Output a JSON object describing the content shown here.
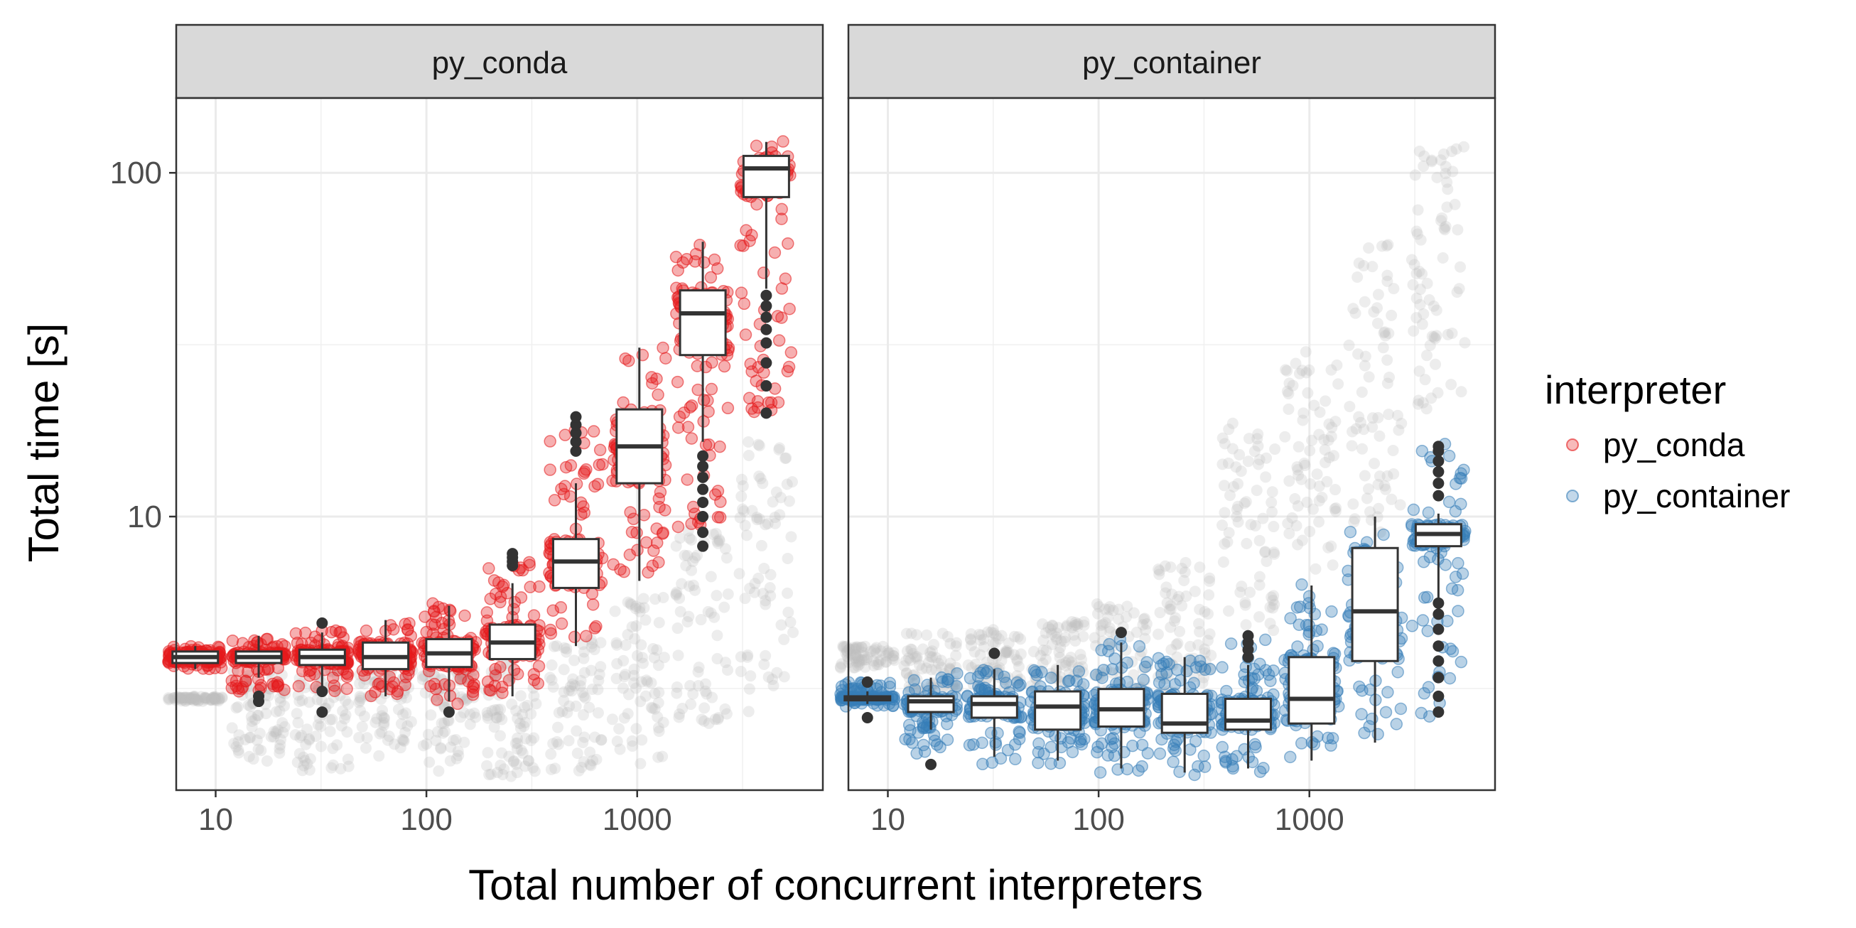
{
  "chart_data": {
    "type": "boxplot-jitter",
    "x_scale": "log10",
    "y_scale": "log10",
    "xlabel": "Total number of concurrent interpreters",
    "ylabel": "Total time [s]",
    "x_ticks": [
      10,
      100,
      1000
    ],
    "x_tick_labels": [
      "10",
      "100",
      "1000"
    ],
    "y_ticks": [
      10,
      100
    ],
    "y_tick_labels": [
      "10",
      "100"
    ],
    "xlim": [
      6.5,
      7600
    ],
    "ylim": [
      1.6,
      165
    ],
    "legend": {
      "title": "interpreter",
      "position": "right",
      "entries": [
        {
          "label": "py_conda",
          "color": "#E41A1C"
        },
        {
          "label": "py_container",
          "color": "#377EB8"
        }
      ]
    },
    "grid": true,
    "background_points_color": "#BEBEBE",
    "panels": [
      {
        "title": "py_conda",
        "series": "py_conda",
        "color": "#E41A1C",
        "background_series": "py_container",
        "boxes": [
          {
            "x": 8,
            "low": 3.6,
            "q1": 3.75,
            "median": 3.9,
            "q3": 4.05,
            "high": 4.2
          },
          {
            "x": 16,
            "low": 3.4,
            "q1": 3.75,
            "median": 3.9,
            "q3": 4.05,
            "high": 4.5
          },
          {
            "x": 32,
            "low": 3.2,
            "q1": 3.7,
            "median": 3.9,
            "q3": 4.1,
            "high": 4.6
          },
          {
            "x": 64,
            "low": 3.0,
            "q1": 3.6,
            "median": 3.9,
            "q3": 4.3,
            "high": 5.0
          },
          {
            "x": 128,
            "low": 2.9,
            "q1": 3.65,
            "median": 4.0,
            "q3": 4.4,
            "high": 5.5
          },
          {
            "x": 256,
            "low": 3.0,
            "q1": 3.85,
            "median": 4.3,
            "q3": 4.85,
            "high": 6.4
          },
          {
            "x": 512,
            "low": 4.2,
            "q1": 6.2,
            "median": 7.4,
            "q3": 8.6,
            "high": 12.5
          },
          {
            "x": 1024,
            "low": 6.5,
            "q1": 12.5,
            "median": 16.0,
            "q3": 20.5,
            "high": 31.0
          },
          {
            "x": 2048,
            "low": 16.5,
            "q1": 29.5,
            "median": 39.0,
            "q3": 45.5,
            "high": 63.0
          },
          {
            "x": 4096,
            "low": 46.0,
            "q1": 85.0,
            "median": 103.0,
            "q3": 112.0,
            "high": 123.0
          }
        ],
        "outliers": [
          {
            "x": 16,
            "values": [
              3.0,
              2.9
            ]
          },
          {
            "x": 32,
            "values": [
              3.1,
              2.7,
              4.9
            ]
          },
          {
            "x": 128,
            "values": [
              2.7
            ]
          },
          {
            "x": 256,
            "values": [
              7.2,
              7.4,
              7.6,
              7.8
            ]
          },
          {
            "x": 512,
            "values": [
              15.5,
              16.5,
              17.5,
              18.5,
              19.5
            ]
          },
          {
            "x": 2048,
            "values": [
              8.2,
              9.0,
              10.0,
              11.0,
              12.0,
              13.0,
              14.0,
              15.0
            ]
          },
          {
            "x": 4096,
            "values": [
              20.0,
              24.0,
              28.0,
              32.0,
              35.0,
              38.0,
              41.0,
              44.0
            ]
          }
        ],
        "point_ranges": [
          {
            "x": 8,
            "lo": 3.6,
            "hi": 4.2
          },
          {
            "x": 16,
            "lo": 3.1,
            "hi": 4.6
          },
          {
            "x": 32,
            "lo": 3.1,
            "hi": 4.7
          },
          {
            "x": 64,
            "lo": 3.0,
            "hi": 5.0
          },
          {
            "x": 128,
            "lo": 2.85,
            "hi": 5.6
          },
          {
            "x": 256,
            "lo": 3.0,
            "hi": 7.4
          },
          {
            "x": 512,
            "lo": 4.4,
            "hi": 19.0
          },
          {
            "x": 1024,
            "lo": 6.8,
            "hi": 31.0
          },
          {
            "x": 2048,
            "lo": 9.0,
            "hi": 63.0
          },
          {
            "x": 4096,
            "lo": 20.0,
            "hi": 128.0
          }
        ],
        "background_ranges": [
          {
            "x": 8,
            "lo": 2.9,
            "hi": 3.0
          },
          {
            "x": 16,
            "lo": 1.9,
            "hi": 3.6
          },
          {
            "x": 32,
            "lo": 1.8,
            "hi": 3.6
          },
          {
            "x": 64,
            "lo": 2.0,
            "hi": 3.8
          },
          {
            "x": 128,
            "lo": 1.8,
            "hi": 3.6
          },
          {
            "x": 256,
            "lo": 1.75,
            "hi": 3.8
          },
          {
            "x": 512,
            "lo": 1.8,
            "hi": 4.4
          },
          {
            "x": 1024,
            "lo": 1.9,
            "hi": 6.0
          },
          {
            "x": 2048,
            "lo": 2.4,
            "hi": 9.5
          },
          {
            "x": 4096,
            "lo": 2.6,
            "hi": 16.5
          }
        ]
      },
      {
        "title": "py_container",
        "series": "py_container",
        "color": "#377EB8",
        "background_series": "py_conda",
        "boxes": [
          {
            "x": 8,
            "low": 2.85,
            "q1": 2.92,
            "median": 2.95,
            "q3": 3.0,
            "high": 3.1
          },
          {
            "x": 16,
            "low": 2.4,
            "q1": 2.7,
            "median": 2.9,
            "q3": 3.0,
            "high": 3.4
          },
          {
            "x": 32,
            "low": 2.0,
            "q1": 2.6,
            "median": 2.85,
            "q3": 3.0,
            "high": 3.6
          },
          {
            "x": 64,
            "low": 1.95,
            "q1": 2.4,
            "median": 2.8,
            "q3": 3.1,
            "high": 3.7
          },
          {
            "x": 128,
            "low": 1.85,
            "q1": 2.45,
            "median": 2.75,
            "q3": 3.15,
            "high": 4.3
          },
          {
            "x": 256,
            "low": 1.8,
            "q1": 2.35,
            "median": 2.5,
            "q3": 3.05,
            "high": 3.9
          },
          {
            "x": 512,
            "low": 1.85,
            "q1": 2.4,
            "median": 2.55,
            "q3": 2.95,
            "high": 3.7
          },
          {
            "x": 1024,
            "low": 1.95,
            "q1": 2.5,
            "median": 2.95,
            "q3": 3.9,
            "high": 6.3
          },
          {
            "x": 2048,
            "low": 2.2,
            "q1": 3.8,
            "median": 5.3,
            "q3": 8.1,
            "high": 10.0
          },
          {
            "x": 4096,
            "low": 5.8,
            "q1": 8.2,
            "median": 8.9,
            "q3": 9.5,
            "high": 10.2
          }
        ],
        "outliers": [
          {
            "x": 8,
            "values": [
              3.3,
              2.6
            ]
          },
          {
            "x": 16,
            "values": [
              1.9
            ]
          },
          {
            "x": 32,
            "values": [
              4.0
            ]
          },
          {
            "x": 128,
            "values": [
              4.6
            ]
          },
          {
            "x": 512,
            "values": [
              3.9,
              4.1,
              4.3,
              4.5
            ]
          },
          {
            "x": 4096,
            "values": [
              2.7,
              3.0,
              3.4,
              3.8,
              4.2,
              4.7,
              5.2,
              5.6,
              11.5,
              12.5,
              13.5,
              14.5,
              15.5,
              16.0
            ]
          }
        ],
        "point_ranges": [
          {
            "x": 8,
            "lo": 2.8,
            "hi": 3.3
          },
          {
            "x": 16,
            "lo": 2.0,
            "hi": 3.5
          },
          {
            "x": 32,
            "lo": 1.9,
            "hi": 3.6
          },
          {
            "x": 64,
            "lo": 1.9,
            "hi": 3.6
          },
          {
            "x": 128,
            "lo": 1.8,
            "hi": 4.4
          },
          {
            "x": 256,
            "lo": 1.75,
            "hi": 3.9
          },
          {
            "x": 512,
            "lo": 1.8,
            "hi": 4.4
          },
          {
            "x": 1024,
            "lo": 1.9,
            "hi": 6.4
          },
          {
            "x": 2048,
            "lo": 2.2,
            "hi": 10.0
          },
          {
            "x": 4096,
            "lo": 2.6,
            "hi": 16.5
          }
        ],
        "background_ranges": [
          {
            "x": 8,
            "lo": 3.6,
            "hi": 4.2
          },
          {
            "x": 16,
            "lo": 3.1,
            "hi": 4.6
          },
          {
            "x": 32,
            "lo": 3.1,
            "hi": 4.7
          },
          {
            "x": 64,
            "lo": 3.0,
            "hi": 5.0
          },
          {
            "x": 128,
            "lo": 2.85,
            "hi": 5.6
          },
          {
            "x": 256,
            "lo": 3.0,
            "hi": 7.4
          },
          {
            "x": 512,
            "lo": 4.4,
            "hi": 19.0
          },
          {
            "x": 1024,
            "lo": 6.8,
            "hi": 31.0
          },
          {
            "x": 2048,
            "lo": 9.0,
            "hi": 63.0
          },
          {
            "x": 4096,
            "lo": 20.0,
            "hi": 128.0
          }
        ]
      }
    ]
  }
}
